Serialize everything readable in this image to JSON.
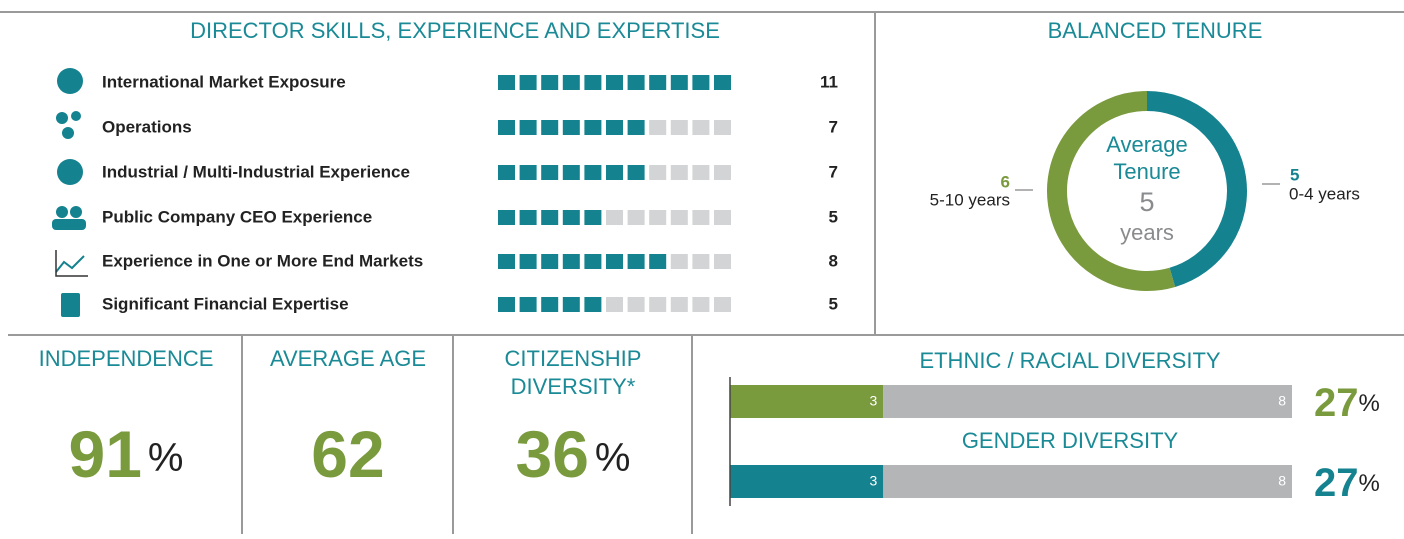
{
  "chart_data": [
    {
      "type": "unit-bar",
      "title": "DIRECTOR SKILLS, EXPERIENCE AND EXPERTISE",
      "categories": [
        "International Market Exposure",
        "Operations",
        "Industrial / Multi-Industrial Experience",
        "Public Company CEO Experience",
        "Experience in One or More End Markets",
        "Significant Financial Expertise"
      ],
      "values": [
        11,
        7,
        7,
        5,
        8,
        5
      ],
      "xlim": [
        0,
        11
      ],
      "color": "#14828f",
      "empty_color": "#d3d4d6"
    },
    {
      "type": "donut",
      "title": "BALANCED TENURE",
      "center_label": [
        "Average",
        "Tenure"
      ],
      "center_value": 5,
      "center_unit": "years",
      "categories": [
        "0-4 years",
        "5-10 years"
      ],
      "values": [
        5,
        6
      ],
      "colors": [
        "#14828f",
        "#7a9a3e"
      ]
    },
    {
      "type": "stacked-bar",
      "title": "ETHNIC / RACIAL DIVERSITY",
      "values": [
        3,
        8
      ],
      "colors": [
        "#7a9a3e",
        "#b4b5b7"
      ],
      "percent": 27,
      "unit": "%"
    },
    {
      "type": "stacked-bar",
      "title": "GENDER DIVERSITY",
      "values": [
        3,
        8
      ],
      "colors": [
        "#14828f",
        "#b4b5b7"
      ],
      "percent": 27,
      "unit": "%"
    }
  ],
  "stats": [
    {
      "title": [
        "INDEPENDENCE"
      ],
      "value": 91,
      "unit": "%"
    },
    {
      "title": [
        "AVERAGE AGE"
      ],
      "value": 62
    },
    {
      "title": [
        "CITIZENSHIP",
        "DIVERSITY*"
      ],
      "value": 36,
      "unit": "%"
    }
  ]
}
